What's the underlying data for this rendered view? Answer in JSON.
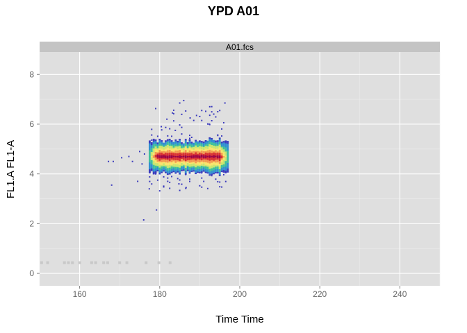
{
  "chart_data": {
    "type": "scatter",
    "title": "YPD A01",
    "panel_label": "A01.fcs",
    "xlabel": "Time Time",
    "ylabel": "FL1.A FL1-A",
    "xlim": [
      150,
      250
    ],
    "ylim": [
      -0.5,
      8.9
    ],
    "x_ticks": [
      160,
      180,
      200,
      220,
      240
    ],
    "y_ticks": [
      0,
      2,
      4,
      6,
      8
    ],
    "x_minor_gridlines": [
      150,
      170,
      190,
      210,
      230,
      250
    ],
    "y_minor_gridlines": [
      1,
      3,
      5,
      7
    ],
    "grid": true,
    "colors": {
      "panel_background": "#dfdfdf",
      "strip_background": "#c4c4c4",
      "grid_major": "#ffffff",
      "grid_minor": "#eeeeee",
      "low_density_point": "#3b3bbd",
      "zero_marks": "#c8c8c8",
      "density_scale": [
        "#3b3bbd",
        "#2f8fd0",
        "#3fbf9a",
        "#c8e66e",
        "#fbe56a",
        "#f39a4e",
        "#d93030",
        "#9e0142"
      ]
    },
    "dense_region": {
      "x_range": [
        177.5,
        197
      ],
      "center_y": 4.7,
      "spread_y": 0.45,
      "column_step": 0.5
    },
    "outliers": [
      [
        176,
        2.15
      ],
      [
        177.4,
        3.4
      ],
      [
        179.2,
        2.55
      ],
      [
        174.5,
        3.7
      ],
      [
        168,
        3.55
      ],
      [
        167.2,
        4.5
      ],
      [
        168.4,
        4.5
      ],
      [
        172.3,
        4.7
      ],
      [
        170.5,
        4.65
      ],
      [
        173.2,
        4.5
      ],
      [
        175,
        4.9
      ],
      [
        176.2,
        4.8
      ],
      [
        175.6,
        4.4
      ],
      [
        185,
        6.85
      ],
      [
        186,
        6.95
      ],
      [
        183.2,
        6.45
      ],
      [
        181.8,
        6.2
      ],
      [
        188.5,
        6.15
      ],
      [
        190.5,
        6.55
      ],
      [
        194.5,
        6.5
      ],
      [
        195,
        6.55
      ],
      [
        196.3,
        6.85
      ],
      [
        189.2,
        6.35
      ],
      [
        187.6,
        6.25
      ],
      [
        186.6,
        3.45
      ],
      [
        184.8,
        3.6
      ],
      [
        192.4,
        6.0
      ],
      [
        180.4,
        5.9
      ],
      [
        183.9,
        5.75
      ]
    ],
    "zero_marks_x": [
      150.5,
      152,
      156.2,
      157.2,
      158.2,
      160,
      163,
      164,
      166,
      167,
      170,
      171.8,
      176.6,
      179.8,
      182.6
    ],
    "zero_marks_y": 0.43
  }
}
